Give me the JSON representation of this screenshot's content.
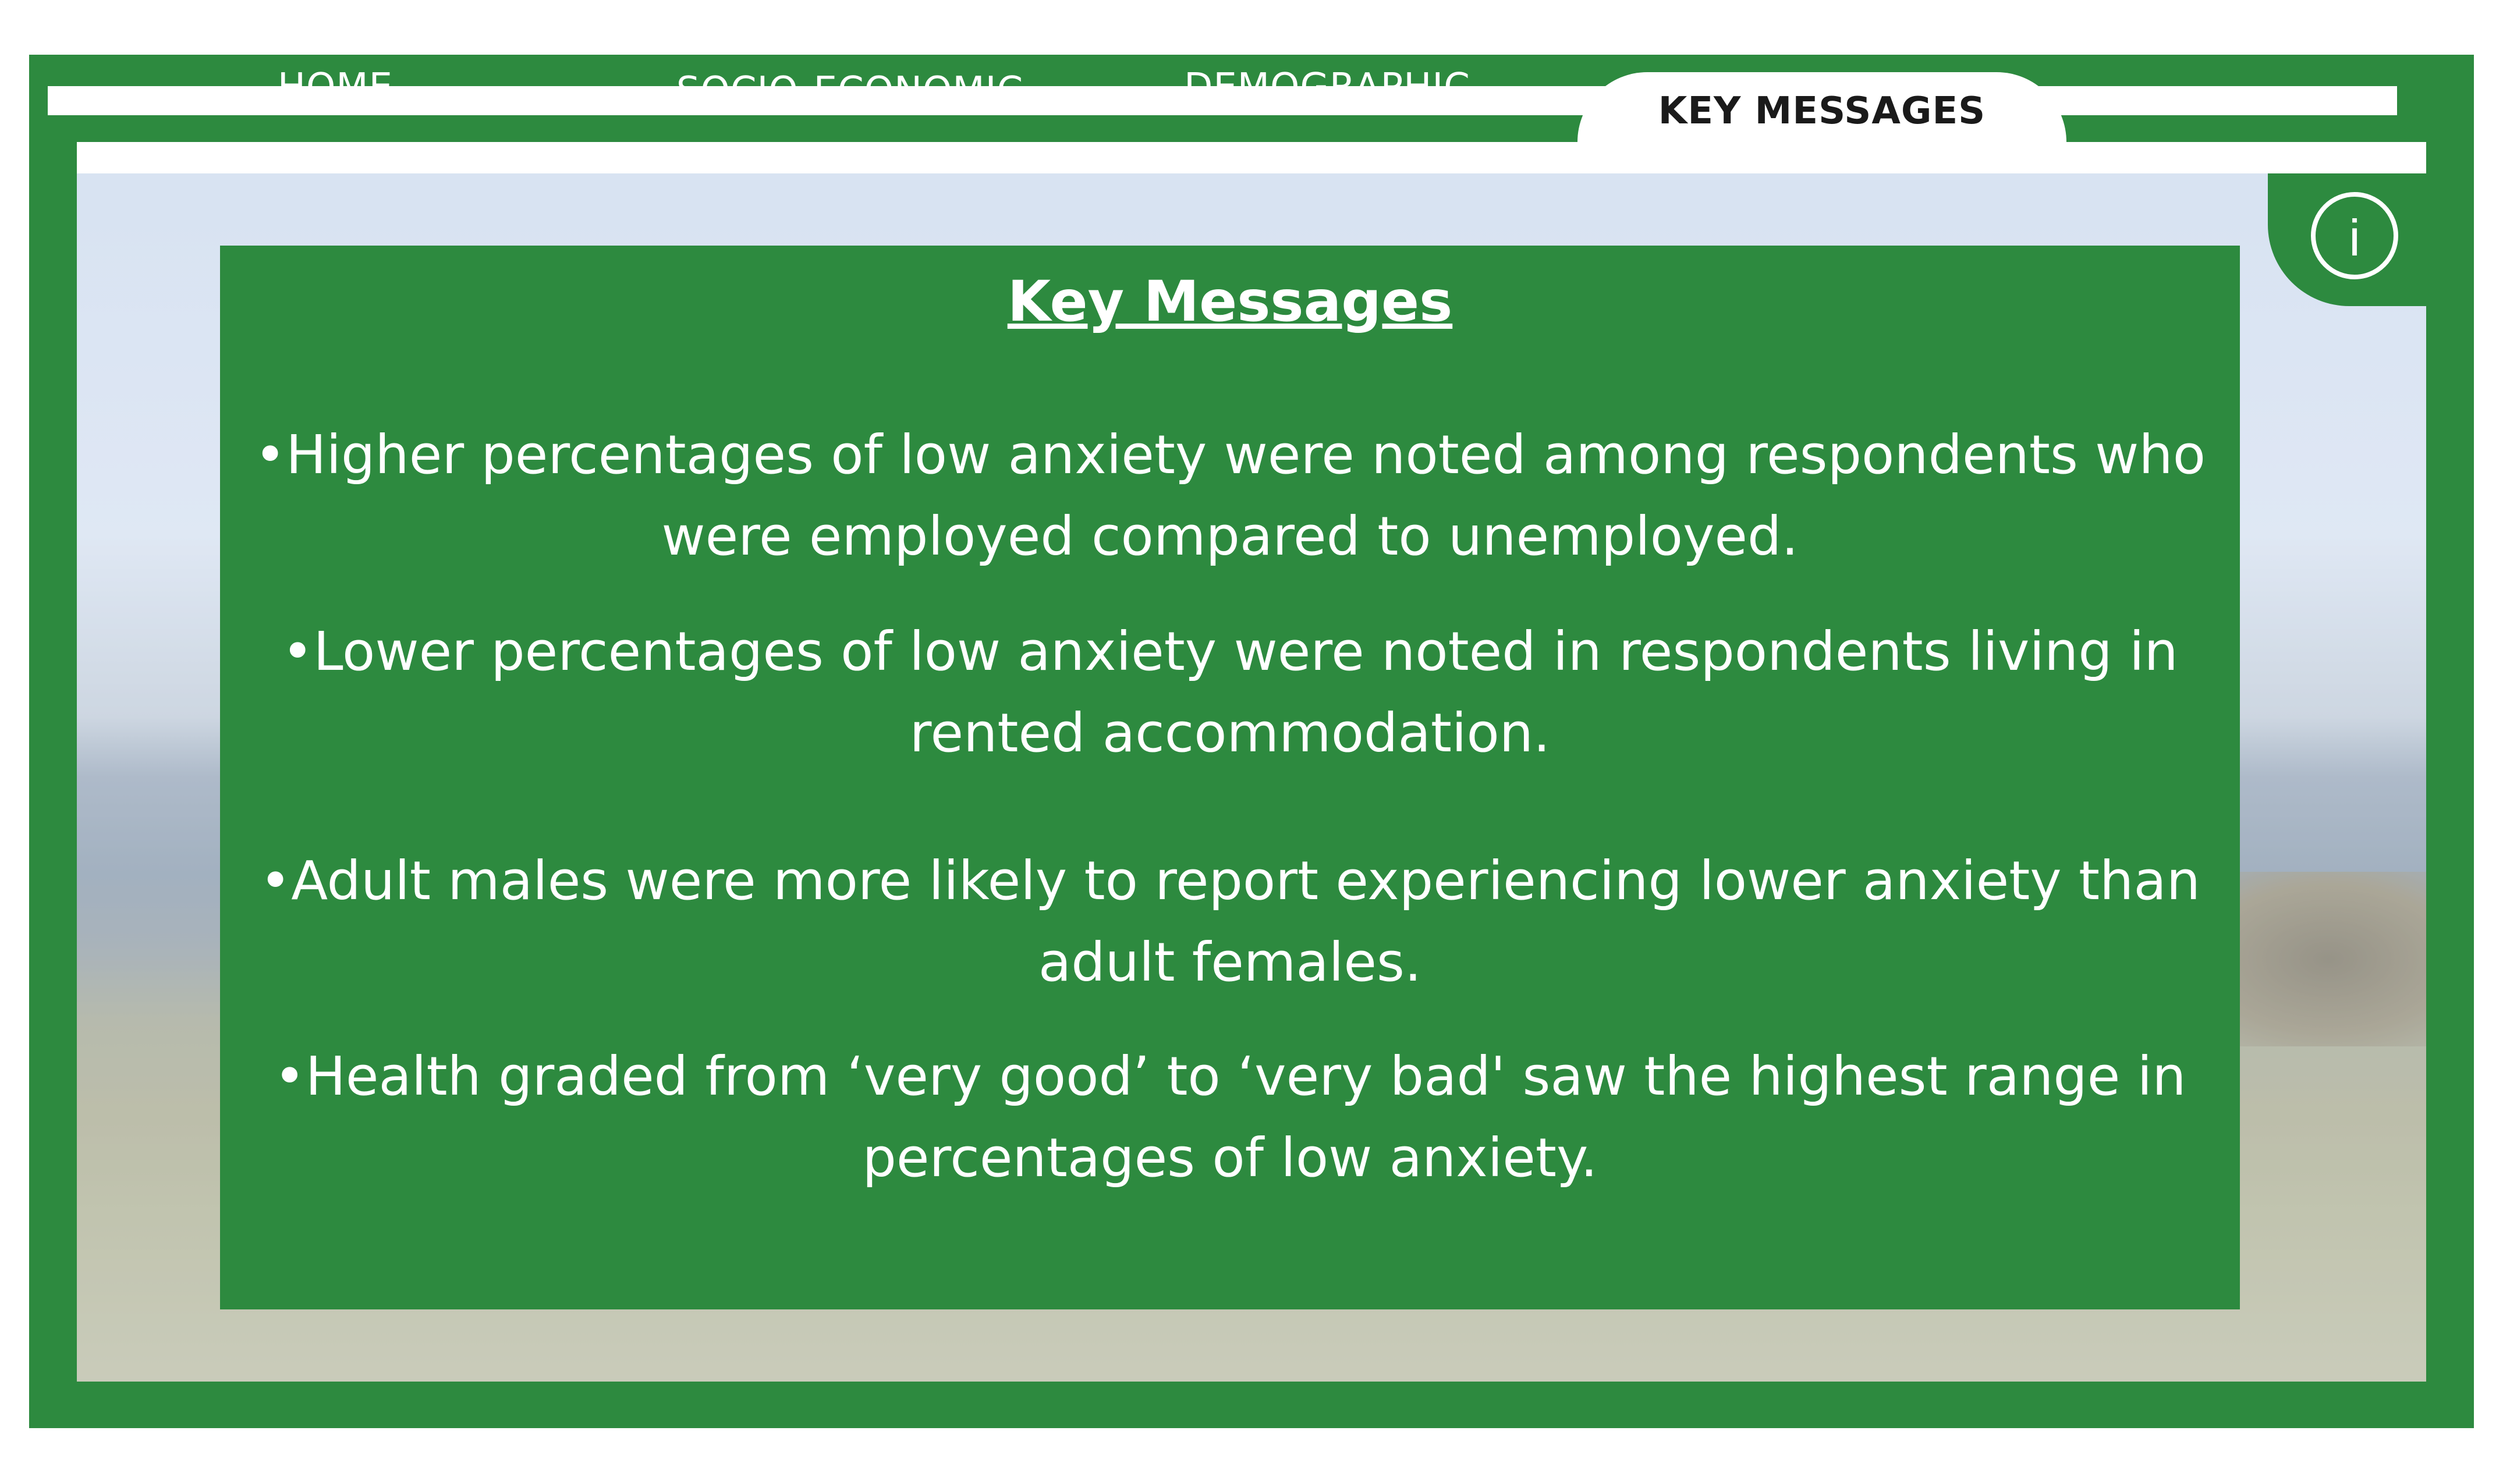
{
  "nav": {
    "tabs": [
      {
        "label": "HOME"
      },
      {
        "label": "SOCIO-ECONOMIC"
      },
      {
        "label": "DEMOGRAPHIC"
      },
      {
        "label": "KEY MESSAGES",
        "active": true
      }
    ]
  },
  "info": {
    "icon": "info-icon",
    "glyph": "i"
  },
  "panel": {
    "title": "Key Messages",
    "messages": [
      {
        "line1": "•Higher percentages of low anxiety were noted among respondents who",
        "line2": "were employed compared to unemployed."
      },
      {
        "line1": "•Lower percentages of low anxiety were noted in respondents living in",
        "line2": "rented accommodation."
      },
      {
        "line1": "•Adult males were more likely to report experiencing lower anxiety than",
        "line2": "adult females."
      },
      {
        "line1": "•Health graded from ‘very good’ to ‘very bad' saw the highest range in",
        "line2": "percentages of low anxiety."
      }
    ]
  },
  "colors": {
    "brand_green": "#2d8a3f",
    "text_white": "#ffffff"
  }
}
